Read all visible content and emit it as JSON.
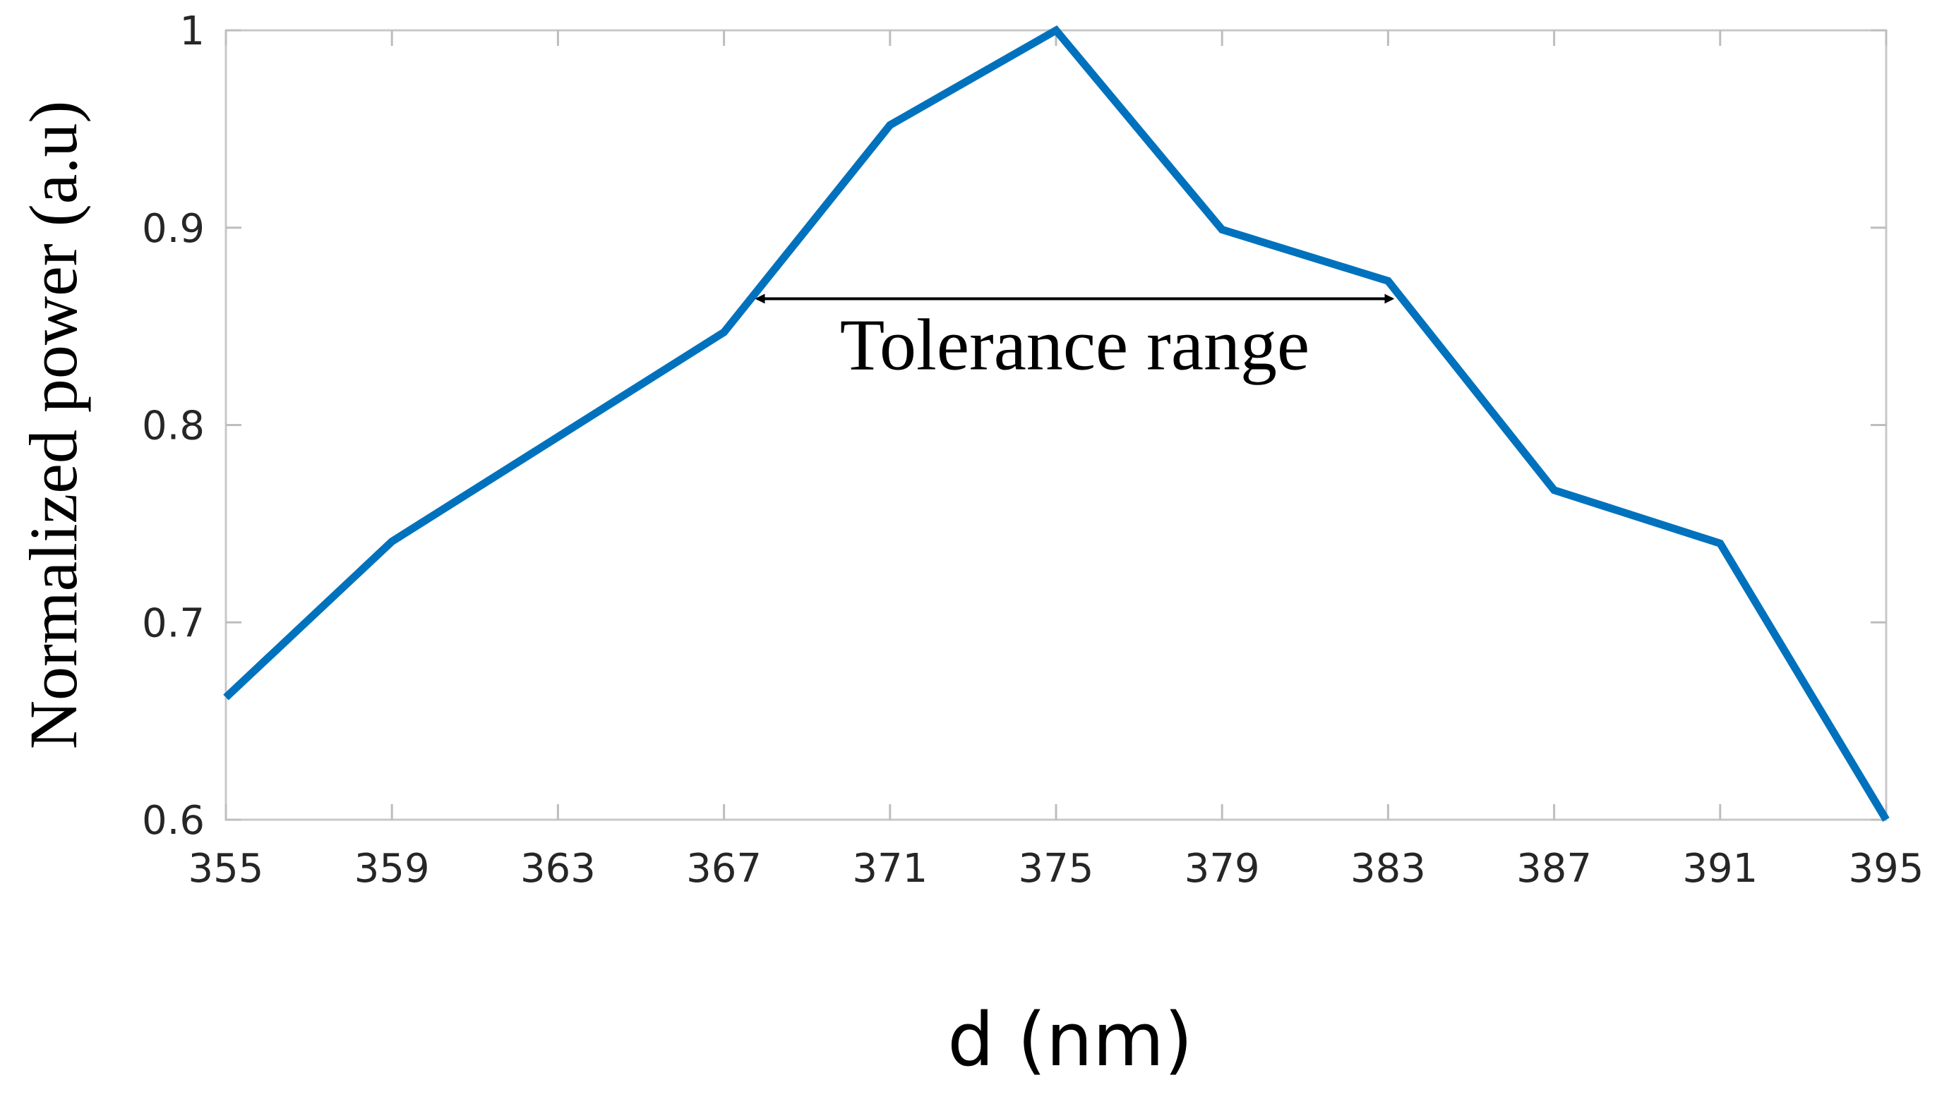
{
  "chart_data": {
    "type": "line",
    "title": "",
    "xlabel": "d (nm)",
    "ylabel": "Normalized power (a.u)",
    "xlim": [
      355,
      395
    ],
    "ylim": [
      0.6,
      1.0
    ],
    "x_ticks": [
      355,
      359,
      363,
      367,
      371,
      375,
      379,
      383,
      387,
      391,
      395
    ],
    "y_ticks": [
      0.6,
      0.7,
      0.8,
      0.9,
      1.0
    ],
    "y_tick_labels": [
      "0.6",
      "0.7",
      "0.8",
      "0.9",
      "1"
    ],
    "grid": false,
    "legend": "none",
    "series": [
      {
        "name": "Normalized power",
        "color": "#0072BD",
        "x": [
          355,
          359,
          363,
          367,
          371,
          375,
          379,
          383,
          387,
          391,
          395
        ],
        "y": [
          0.662,
          0.741,
          0.794,
          0.847,
          0.952,
          1.0,
          0.899,
          0.873,
          0.767,
          0.74,
          0.6
        ]
      }
    ],
    "annotations": [
      {
        "text": "Tolerance range",
        "arrow": "double",
        "x_start": 367.8,
        "x_end": 383.1,
        "y": 0.864
      }
    ]
  }
}
